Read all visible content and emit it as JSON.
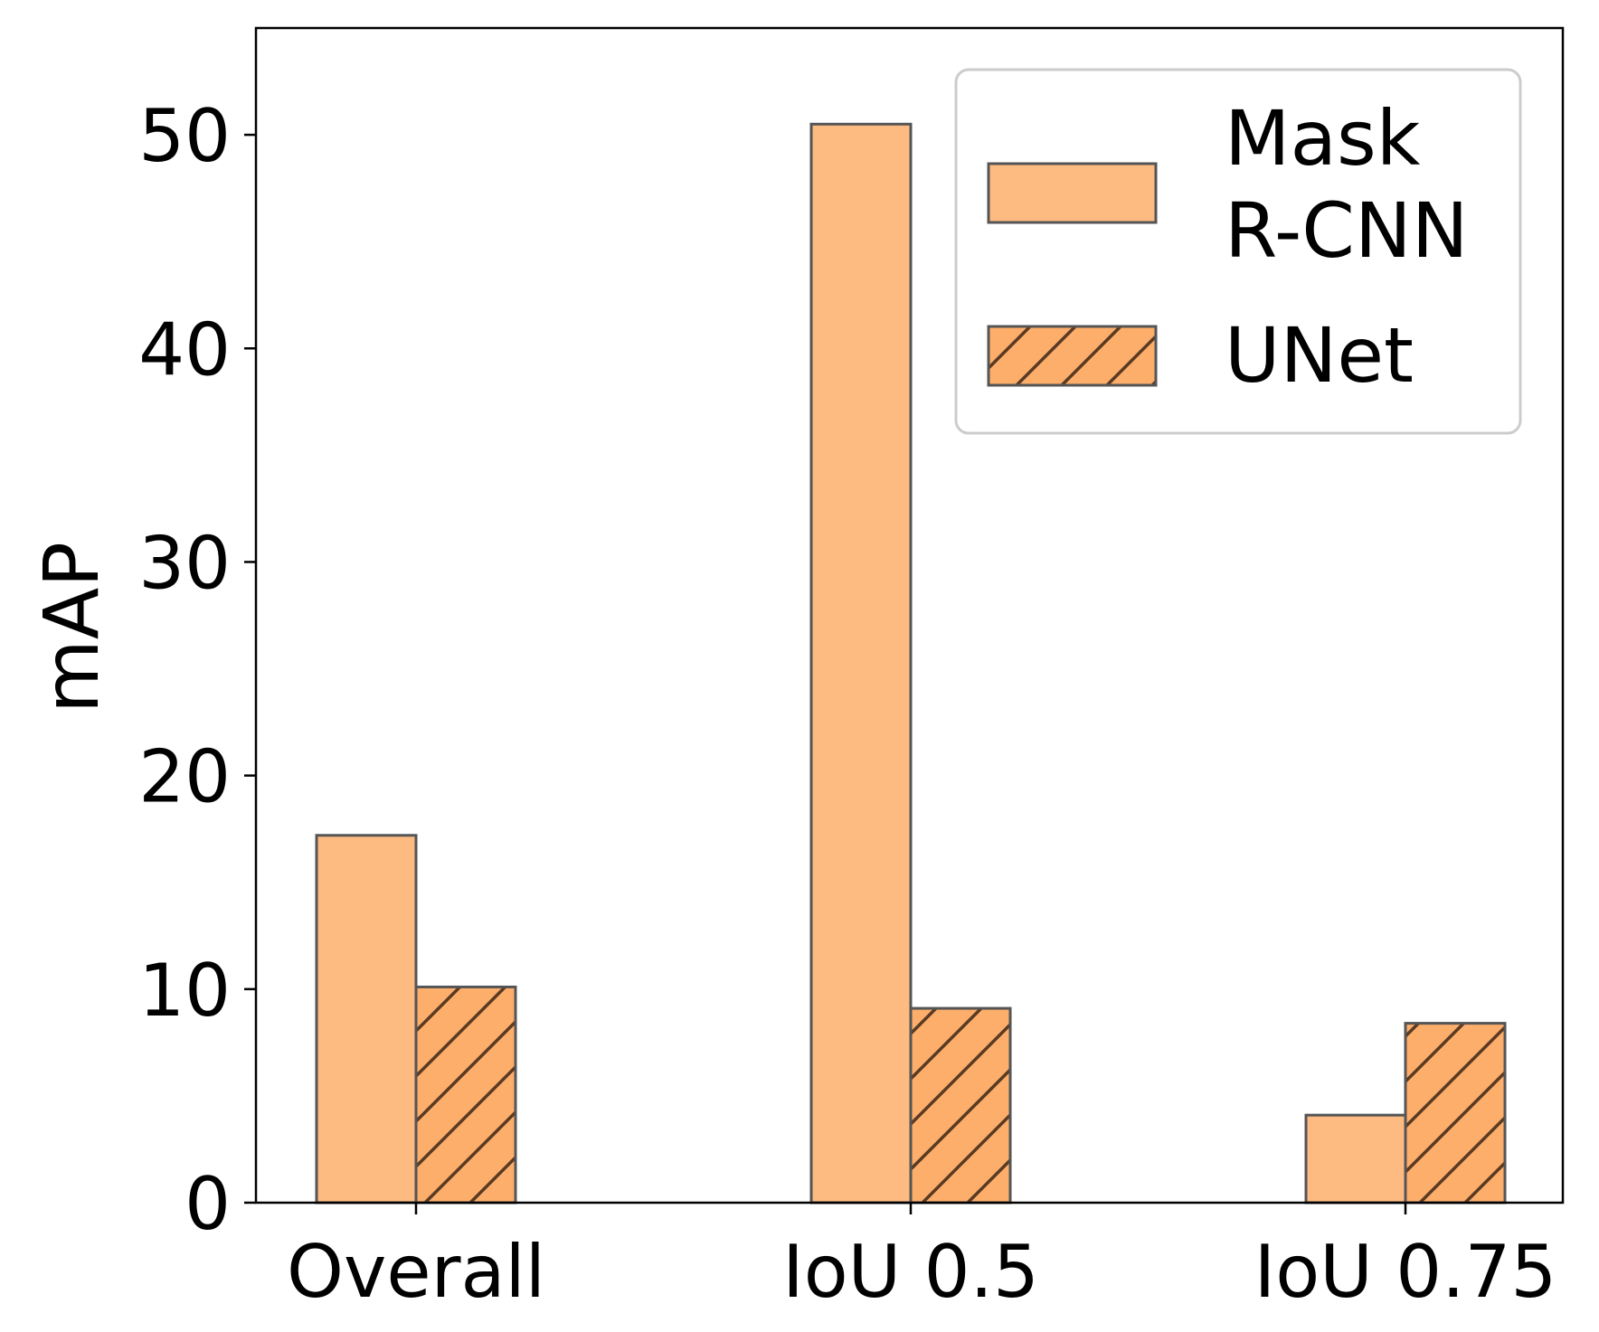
{
  "chart_data": {
    "type": "bar",
    "title": "",
    "xlabel": "",
    "ylabel": "mAP",
    "categories": [
      "Overall",
      "IoU 0.5",
      "IoU 0.75"
    ],
    "series": [
      {
        "name": "Mask R-CNN",
        "legend_lines": [
          "Mask",
          "R-CNN"
        ],
        "values": [
          17.2,
          50.5,
          4.1
        ],
        "color": "#fdbb81",
        "hatch": false
      },
      {
        "name": "UNet",
        "legend_lines": [
          "UNet"
        ],
        "values": [
          10.1,
          9.1,
          8.4
        ],
        "color": "#fdae6b",
        "hatch": true
      }
    ],
    "ylim": [
      0,
      55
    ],
    "yticks": [
      0,
      10,
      20,
      30,
      40,
      50
    ],
    "grid": false,
    "legend_position": "top-right",
    "edge_color": "#555555",
    "hatch_color": "#5a3a22"
  }
}
